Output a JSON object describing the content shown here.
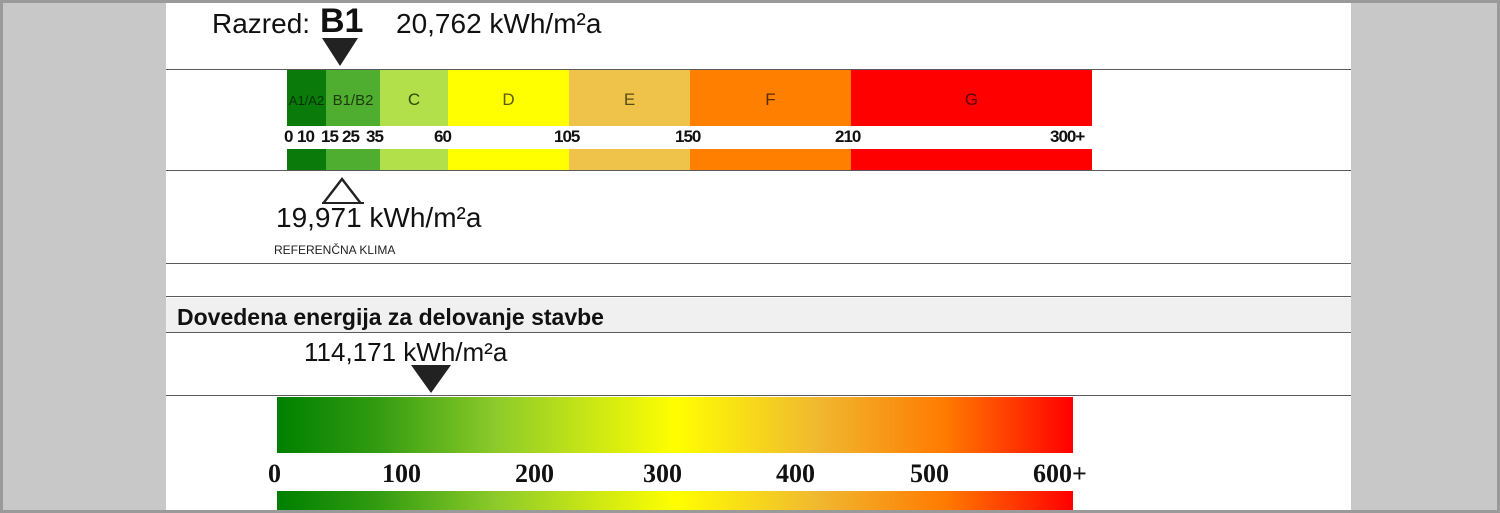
{
  "rating": {
    "label": "Razred:",
    "class": "B1",
    "value": "20,762 kWh/m²a"
  },
  "bands": [
    {
      "label": "A1/A2",
      "color": "#0a7a0a",
      "label_color": "#003300"
    },
    {
      "label": "B1/B2",
      "color": "#4fae30",
      "label_color": "#1e3a0a"
    },
    {
      "label": "C",
      "color": "#b2e04a",
      "label_color": "#2e4a00"
    },
    {
      "label": "D",
      "color": "#ffff00",
      "label_color": "#5a5a00"
    },
    {
      "label": "E",
      "color": "#efc24a",
      "label_color": "#5a4a10"
    },
    {
      "label": "F",
      "color": "#ff7f00",
      "label_color": "#5a2a00"
    },
    {
      "label": "G",
      "color": "#ff0000",
      "label_color": "#5a0000"
    }
  ],
  "ticks": [
    "0",
    "10",
    "15",
    "25",
    "35",
    "60",
    "105",
    "150",
    "210",
    "300+"
  ],
  "reference": {
    "value": "19,971 kWh/m²a",
    "caption": "REFERENČNA KLIMA"
  },
  "delivered": {
    "title": "Dovedena energija za delovanje stavbe",
    "value": "114,171 kWh/m²a",
    "scale": [
      "0",
      "100",
      "200",
      "300",
      "400",
      "500",
      "600+"
    ]
  }
}
